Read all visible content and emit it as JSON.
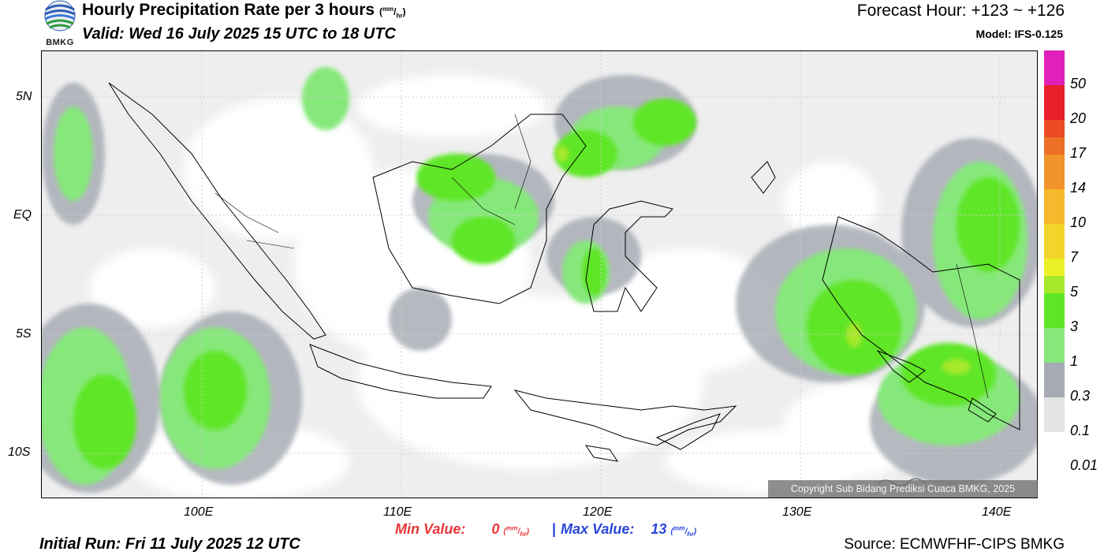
{
  "header": {
    "title": "Hourly Precipitation Rate per 3 hours",
    "title_unit_top": "mm",
    "title_unit_bottom": "hr",
    "valid": "Valid: Wed 16 July 2025 15 UTC to 18 UTC",
    "forecast": "Forecast Hour: +123 ~ +126",
    "model": "Model: IFS-0.125",
    "logo_text": "BMKG"
  },
  "map": {
    "lat_labels": [
      "5N",
      "EQ",
      "5S",
      "10S"
    ],
    "lon_labels": [
      "100E",
      "110E",
      "120E",
      "130E",
      "140E"
    ],
    "copyright": "Copyright Sub Bidang Prediksi Cuaca BMKG, 2025"
  },
  "colorbar": {
    "labels": [
      "50",
      "20",
      "17",
      "14",
      "10",
      "7",
      "5",
      "3",
      "1",
      "0.3",
      "0.1",
      "0.01"
    ],
    "colors": [
      "#e020b8",
      "#e81e2a",
      "#ea4a24",
      "#ee6f26",
      "#f2942a",
      "#f6b82c",
      "#f2d52a",
      "#ecf026",
      "#a6e82a",
      "#5ee626",
      "#86e87a",
      "#a6aab4",
      "#e4e4e4"
    ]
  },
  "footer": {
    "min_label": "Min Value:",
    "min_value": "0",
    "max_label": "Max Value:",
    "max_value": "13",
    "unit_top": "mm",
    "unit_bottom": "hr",
    "separator": "|",
    "initial_run": "Initial Run: Fri 11 July 2025 12 UTC",
    "source": "Source: ECMWFHF-CIPS BMKG"
  }
}
